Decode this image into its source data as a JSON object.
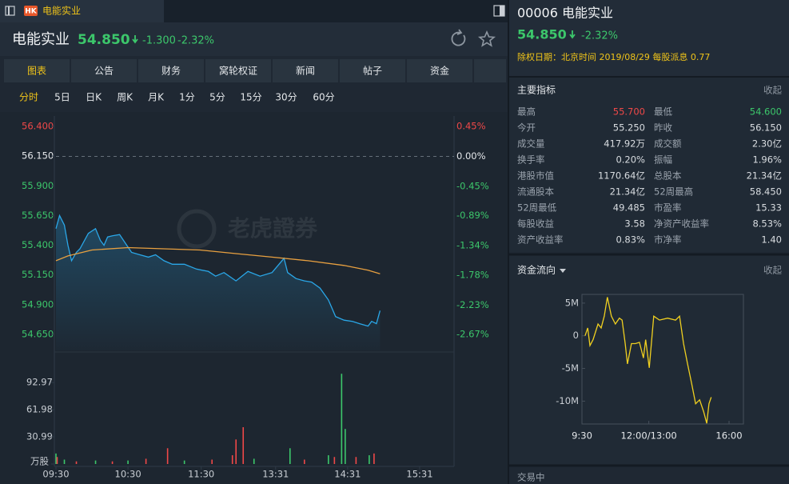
{
  "tab": {
    "badge": "HK",
    "title": "电能实业"
  },
  "header": {
    "name": "电能实业",
    "price": "54.850",
    "change": "-1.300",
    "change_pct": "-2.32%"
  },
  "tabs": {
    "items": [
      "图表",
      "公告",
      "财务",
      "窝轮权证",
      "新闻",
      "帖子",
      "资金"
    ],
    "active": 0
  },
  "periods": {
    "items": [
      "分时",
      "5日",
      "日K",
      "周K",
      "月K",
      "1分",
      "5分",
      "15分",
      "30分",
      "60分"
    ],
    "active": 0
  },
  "price_chart": {
    "type": "line",
    "watermark": "老虎證券",
    "xlim": [
      0,
      333
    ],
    "xticks": [
      {
        "value": 0,
        "label": "09:30"
      },
      {
        "value": 60,
        "label": "10:30"
      },
      {
        "value": 121,
        "label": "11:30"
      },
      {
        "value": 183,
        "label": "13:31"
      },
      {
        "value": 243,
        "label": "14:31"
      },
      {
        "value": 303,
        "label": "15:31"
      }
    ],
    "ylim": [
      54.65,
      56.4
    ],
    "yticks": [
      {
        "value": 56.4,
        "label": "56.400"
      },
      {
        "value": 56.15,
        "label": "56.150"
      },
      {
        "value": 55.9,
        "label": "55.900"
      },
      {
        "value": 55.65,
        "label": "55.650"
      },
      {
        "value": 55.4,
        "label": "55.400"
      },
      {
        "value": 55.15,
        "label": "55.150"
      },
      {
        "value": 54.9,
        "label": "54.900"
      },
      {
        "value": 54.65,
        "label": "54.650"
      }
    ],
    "y2lim": [
      -2.67,
      0.45
    ],
    "y2ticks": [
      {
        "value": 0.45,
        "label": "0.45%"
      },
      {
        "value": 0,
        "label": "0.00%"
      },
      {
        "value": -0.45,
        "label": "-0.45%"
      },
      {
        "value": -0.89,
        "label": "-0.89%"
      },
      {
        "value": -1.34,
        "label": "-1.34%"
      },
      {
        "value": -1.78,
        "label": "-1.78%"
      },
      {
        "value": -2.23,
        "label": "-2.23%"
      },
      {
        "value": -2.67,
        "label": "-2.67%"
      }
    ],
    "up_color": "#f04848",
    "flat_color": "#e6e9ec",
    "down_color": "#3cc76b",
    "series": [
      {
        "color": "#2aa7e8",
        "area": true,
        "x": [
          0,
          3,
          7,
          10,
          13,
          17,
          20,
          27,
          33,
          37,
          40,
          43,
          47,
          53,
          59,
          63,
          70,
          77,
          83,
          90,
          97,
          107,
          117,
          127,
          133,
          140,
          150,
          160,
          170,
          180,
          190,
          193,
          200,
          207,
          213,
          220,
          227,
          230,
          233,
          240,
          247,
          253,
          260,
          263,
          267,
          270
        ],
        "values": [
          55.54,
          55.65,
          55.57,
          55.4,
          55.27,
          55.34,
          55.37,
          55.5,
          55.54,
          55.44,
          55.4,
          55.47,
          55.48,
          55.49,
          55.4,
          55.34,
          55.32,
          55.3,
          55.32,
          55.27,
          55.24,
          55.24,
          55.2,
          55.18,
          55.14,
          55.17,
          55.1,
          55.18,
          55.14,
          55.17,
          55.29,
          55.17,
          55.12,
          55.1,
          55.09,
          55.04,
          54.94,
          54.87,
          54.8,
          54.77,
          54.76,
          54.74,
          54.72,
          54.76,
          54.74,
          54.85
        ]
      },
      {
        "color": "#e8a040",
        "area": false,
        "x": [
          0,
          10,
          30,
          60,
          90,
          120,
          150,
          180,
          210,
          240,
          260,
          270
        ],
        "values": [
          55.27,
          55.31,
          55.36,
          55.38,
          55.37,
          55.36,
          55.33,
          55.3,
          55.27,
          55.23,
          55.19,
          55.16
        ]
      }
    ]
  },
  "volume_chart": {
    "type": "bar",
    "ylim": [
      0,
      105
    ],
    "yticks": [
      92.97,
      61.98,
      30.99,
      {
        "value": 0,
        "label": "万股"
      }
    ],
    "x": [
      0,
      1,
      7,
      17,
      33,
      47,
      60,
      75,
      93,
      107,
      130,
      147,
      150,
      156,
      165,
      195,
      207,
      227,
      232,
      238,
      241,
      250,
      261,
      265
    ],
    "values": [
      12,
      8,
      5,
      3,
      4,
      3,
      4,
      6,
      18,
      4,
      5,
      10,
      28,
      42,
      6,
      18,
      5,
      10,
      8,
      103,
      40,
      8,
      10,
      12
    ],
    "colors": [
      "#3cc76b",
      "#f04848",
      "#3cc76b",
      "#f04848",
      "#3cc76b",
      "#f04848",
      "#3cc76b",
      "#f04848",
      "#f04848",
      "#3cc76b",
      "#f04848",
      "#f04848",
      "#f04848",
      "#f04848",
      "#3cc76b",
      "#3cc76b",
      "#f04848",
      "#3cc76b",
      "#f04848",
      "#3cc76b",
      "#3cc76b",
      "#f04848",
      "#3cc76b",
      "#f04848"
    ]
  },
  "side": {
    "title": "00006 电能实业",
    "price": "54.850",
    "change_pct": "-2.32%",
    "dividend": "除权日期：北京时间 2019/08/29 每股派息 0.77"
  },
  "indicators": {
    "title": "主要指标",
    "collapse": "收起",
    "rows": [
      [
        "最高",
        "55.700",
        "最低",
        "54.600"
      ],
      [
        "今开",
        "55.250",
        "昨收",
        "56.150"
      ],
      [
        "成交量",
        "417.92万",
        "成交额",
        "2.30亿"
      ],
      [
        "换手率",
        "0.20%",
        "振幅",
        "1.96%"
      ],
      [
        "港股市值",
        "1170.64亿",
        "总股本",
        "21.34亿"
      ],
      [
        "流通股本",
        "21.34亿",
        "52周最高",
        "58.450"
      ],
      [
        "52周最低",
        "49.485",
        "市盈率",
        "15.33"
      ],
      [
        "每股收益",
        "3.58",
        "净资产收益率",
        "8.53%"
      ],
      [
        "资产收益率",
        "0.83%",
        "市净率",
        "1.40"
      ]
    ]
  },
  "fund_flow": {
    "title": "资金流向",
    "collapse": "收起",
    "chart": {
      "type": "line",
      "color": "#f0d020",
      "xlim": [
        0,
        330
      ],
      "xticks": [
        {
          "value": 0,
          "label": "9:30"
        },
        {
          "value": 150,
          "label": "12:00/13:00"
        },
        {
          "value": 330,
          "label": "16:00"
        }
      ],
      "ylim": [
        -13.5,
        6.7
      ],
      "yticks": [
        {
          "value": 5,
          "label": "5M"
        },
        0,
        {
          "value": -5,
          "label": "-5M"
        },
        {
          "value": -10,
          "label": "-10M"
        }
      ],
      "x": [
        7,
        13,
        18,
        25,
        36,
        43,
        50,
        57,
        66,
        75,
        84,
        90,
        97,
        102,
        111,
        120,
        129,
        138,
        143,
        151,
        161,
        174,
        192,
        210,
        219,
        228,
        237,
        246,
        255,
        264,
        273,
        280,
        285,
        290
      ],
      "values": [
        0,
        1.2,
        -1.5,
        -0.6,
        1.8,
        1.2,
        3.0,
        5.9,
        3.0,
        1.8,
        2.7,
        2.4,
        -1.2,
        -4.3,
        -1.2,
        -1.2,
        -1.0,
        -3.4,
        -0.6,
        -4.9,
        3.0,
        2.4,
        2.7,
        2.4,
        3.0,
        -1.2,
        -4.3,
        -7.3,
        -10.4,
        -9.8,
        -11.6,
        -13.4,
        -10.4,
        -9.4
      ]
    }
  },
  "status": "交易中"
}
